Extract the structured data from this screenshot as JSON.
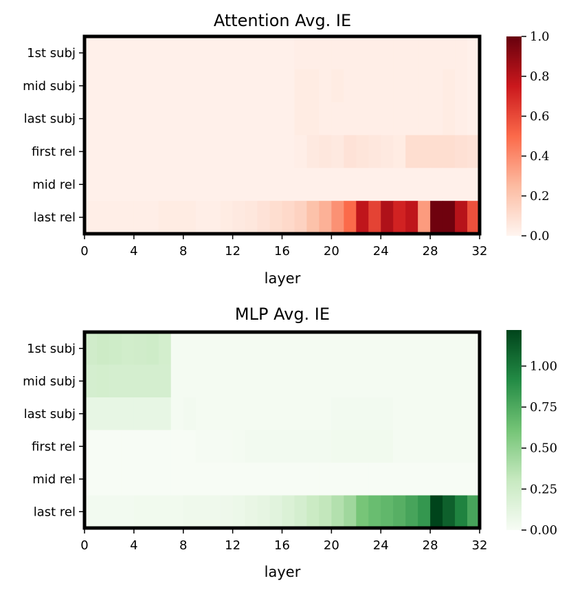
{
  "chart_data": [
    {
      "type": "heatmap",
      "title": "Attention Avg. IE",
      "xlabel": "layer",
      "ylabel": "",
      "rows": [
        "1st subj",
        "mid subj",
        "last subj",
        "first rel",
        "mid rel",
        "last rel"
      ],
      "x_ticks": [
        "0",
        "4",
        "8",
        "12",
        "16",
        "20",
        "24",
        "28",
        "32"
      ],
      "xlim": [
        0,
        32
      ],
      "colormap": "Reds",
      "colormap_colors": [
        "#fff5f0",
        "#fcbba1",
        "#fb6a4a",
        "#cb181d",
        "#67000d"
      ],
      "vmin": 0.0,
      "vmax": 1.0,
      "colorbar_ticks": [
        "0.0",
        "0.2",
        "0.4",
        "0.6",
        "0.8",
        "1.0"
      ],
      "colorbar_tick_values": [
        0.0,
        0.2,
        0.4,
        0.6,
        0.8,
        1.0
      ],
      "values": [
        [
          0.02,
          0.02,
          0.02,
          0.02,
          0.02,
          0.02,
          0.02,
          0.02,
          0.02,
          0.02,
          0.02,
          0.02,
          0.02,
          0.02,
          0.02,
          0.02,
          0.02,
          0.03,
          0.03,
          0.03,
          0.03,
          0.03,
          0.03,
          0.03,
          0.03,
          0.03,
          0.03,
          0.03,
          0.03,
          0.03,
          0.03,
          0.02
        ],
        [
          0.02,
          0.02,
          0.02,
          0.02,
          0.02,
          0.02,
          0.02,
          0.02,
          0.02,
          0.02,
          0.02,
          0.02,
          0.02,
          0.02,
          0.02,
          0.02,
          0.02,
          0.04,
          0.04,
          0.03,
          0.04,
          0.03,
          0.03,
          0.03,
          0.03,
          0.03,
          0.03,
          0.03,
          0.03,
          0.04,
          0.03,
          0.02
        ],
        [
          0.02,
          0.02,
          0.02,
          0.02,
          0.02,
          0.02,
          0.02,
          0.02,
          0.02,
          0.02,
          0.02,
          0.02,
          0.02,
          0.02,
          0.02,
          0.02,
          0.02,
          0.04,
          0.04,
          0.03,
          0.03,
          0.03,
          0.03,
          0.03,
          0.03,
          0.03,
          0.03,
          0.03,
          0.03,
          0.04,
          0.03,
          0.02
        ],
        [
          0.02,
          0.02,
          0.02,
          0.02,
          0.02,
          0.02,
          0.02,
          0.02,
          0.02,
          0.02,
          0.02,
          0.02,
          0.02,
          0.02,
          0.02,
          0.02,
          0.02,
          0.03,
          0.05,
          0.06,
          0.05,
          0.08,
          0.07,
          0.06,
          0.05,
          0.04,
          0.1,
          0.1,
          0.1,
          0.1,
          0.09,
          0.08
        ],
        [
          0.02,
          0.02,
          0.02,
          0.02,
          0.02,
          0.02,
          0.02,
          0.02,
          0.02,
          0.02,
          0.02,
          0.02,
          0.02,
          0.02,
          0.02,
          0.02,
          0.02,
          0.02,
          0.02,
          0.02,
          0.02,
          0.02,
          0.02,
          0.02,
          0.02,
          0.02,
          0.02,
          0.02,
          0.02,
          0.02,
          0.02,
          0.02
        ],
        [
          0.03,
          0.03,
          0.03,
          0.03,
          0.03,
          0.03,
          0.04,
          0.04,
          0.04,
          0.03,
          0.03,
          0.04,
          0.05,
          0.06,
          0.08,
          0.1,
          0.12,
          0.15,
          0.22,
          0.28,
          0.38,
          0.5,
          0.78,
          0.62,
          0.82,
          0.72,
          0.78,
          0.35,
          0.98,
          0.98,
          0.8,
          0.58
        ]
      ]
    },
    {
      "type": "heatmap",
      "title": "MLP Avg. IE",
      "xlabel": "layer",
      "ylabel": "",
      "rows": [
        "1st subj",
        "mid subj",
        "last subj",
        "first rel",
        "mid rel",
        "last rel"
      ],
      "x_ticks": [
        "0",
        "4",
        "8",
        "12",
        "16",
        "20",
        "24",
        "28",
        "32"
      ],
      "xlim": [
        0,
        32
      ],
      "colormap": "Greens",
      "colormap_colors": [
        "#f7fcf5",
        "#c7e9c0",
        "#74c476",
        "#238b45",
        "#00441b"
      ],
      "vmin": 0.0,
      "vmax": 1.22,
      "colorbar_ticks": [
        "0.00",
        "0.25",
        "0.50",
        "0.75",
        "1.00"
      ],
      "colorbar_tick_values": [
        0.0,
        0.25,
        0.5,
        0.75,
        1.0
      ],
      "values": [
        [
          0.25,
          0.27,
          0.26,
          0.24,
          0.25,
          0.26,
          0.23,
          0.02,
          0.02,
          0.02,
          0.02,
          0.02,
          0.02,
          0.02,
          0.02,
          0.02,
          0.02,
          0.02,
          0.02,
          0.02,
          0.02,
          0.02,
          0.02,
          0.02,
          0.02,
          0.02,
          0.02,
          0.02,
          0.02,
          0.02,
          0.02,
          0.02
        ],
        [
          0.22,
          0.23,
          0.22,
          0.22,
          0.22,
          0.22,
          0.22,
          0.02,
          0.02,
          0.02,
          0.02,
          0.02,
          0.02,
          0.02,
          0.02,
          0.02,
          0.02,
          0.02,
          0.02,
          0.02,
          0.02,
          0.02,
          0.02,
          0.02,
          0.02,
          0.02,
          0.02,
          0.02,
          0.02,
          0.02,
          0.02,
          0.02
        ],
        [
          0.1,
          0.1,
          0.1,
          0.1,
          0.1,
          0.1,
          0.1,
          0.02,
          0.03,
          0.02,
          0.02,
          0.02,
          0.02,
          0.02,
          0.02,
          0.02,
          0.02,
          0.02,
          0.02,
          0.02,
          0.03,
          0.03,
          0.03,
          0.03,
          0.03,
          0.02,
          0.02,
          0.02,
          0.02,
          0.02,
          0.02,
          0.02
        ],
        [
          0.0,
          0.0,
          0.0,
          0.0,
          0.0,
          0.0,
          0.0,
          0.0,
          0.0,
          0.01,
          0.01,
          0.01,
          0.02,
          0.03,
          0.03,
          0.03,
          0.03,
          0.03,
          0.03,
          0.03,
          0.04,
          0.04,
          0.04,
          0.04,
          0.04,
          0.02,
          0.02,
          0.02,
          0.02,
          0.02,
          0.02,
          0.02
        ],
        [
          0.0,
          0.0,
          0.0,
          0.0,
          0.0,
          0.0,
          0.0,
          0.0,
          0.0,
          0.0,
          0.0,
          0.0,
          0.0,
          0.0,
          0.0,
          0.0,
          0.0,
          0.0,
          0.0,
          0.0,
          0.0,
          0.0,
          0.0,
          0.0,
          0.0,
          0.0,
          0.0,
          0.0,
          0.0,
          0.0,
          0.0,
          0.0
        ],
        [
          0.03,
          0.03,
          0.03,
          0.03,
          0.04,
          0.04,
          0.04,
          0.04,
          0.05,
          0.05,
          0.05,
          0.06,
          0.07,
          0.09,
          0.11,
          0.14,
          0.18,
          0.22,
          0.28,
          0.32,
          0.38,
          0.45,
          0.6,
          0.65,
          0.68,
          0.72,
          0.78,
          0.85,
          1.22,
          1.1,
          0.95,
          0.78
        ]
      ]
    }
  ]
}
